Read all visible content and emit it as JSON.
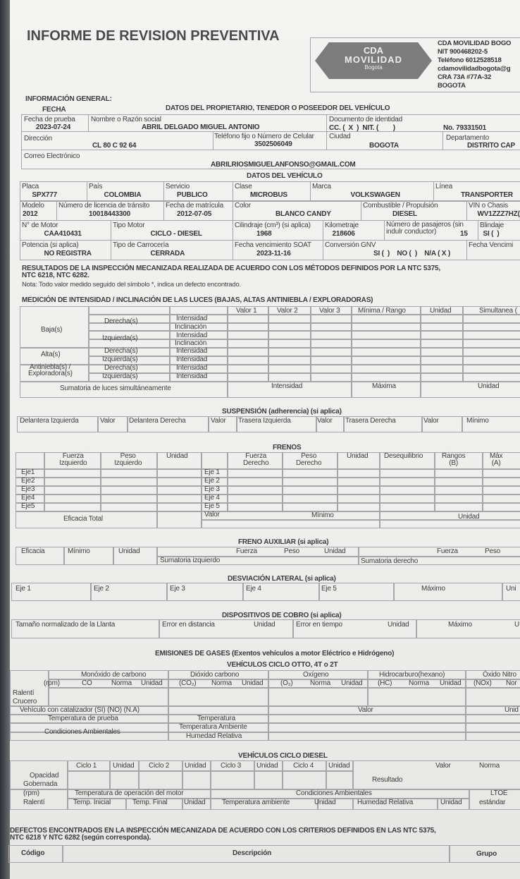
{
  "title": "INFORME DE REVISION PREVENTIVA",
  "company": {
    "logo_text": [
      "CDA",
      "MOVILIDAD",
      "Bogota"
    ],
    "lines": [
      "CDA MOVILIDAD BOGO",
      "NIT 900468202-5",
      "Teléfono 6012528518",
      "cdamovilidadbogota@g",
      "CRA 73A #77A-32",
      "BOGOTA"
    ]
  },
  "general": {
    "heading": "INFORMACIÓN GENERAL:",
    "fecha": "FECHA",
    "owner_heading": "DATOS DEL PROPIETARIO, TENEDOR O POSEEDOR DEL VEHÍCULO",
    "fecha_prueba_label": "Fecha de prueba",
    "fecha_prueba": "2023-07-24",
    "nombre_label": "Nombre o Razón social",
    "nombre": "ABRIL DELGADO MIGUEL ANTONIO",
    "doc_label": "Documento de identidad",
    "doc_type": "CC. (  X  )  NIT. (        )",
    "doc_no": "No.  79331501",
    "direccion_label": "Dirección",
    "direccion": "CL 80 C 92 64",
    "telefono_label": "Teléfono fijo o Número de Celular",
    "telefono": "3502506049",
    "ciudad_label": "Ciudad",
    "ciudad": "BOGOTA",
    "depto_label": "Departamento",
    "depto": "DISTRITO CAP",
    "correo_label": "Correo Electrónico",
    "correo": "ABRILRIOSMIGUELANFONSO@GMAIL.COM"
  },
  "vehicle": {
    "heading": "DATOS DEL VEHÍCULO",
    "fields": [
      {
        "l": "Placa",
        "v": "SPX777"
      },
      {
        "l": "País",
        "v": "COLOMBIA"
      },
      {
        "l": "Servicio",
        "v": "PUBLICO"
      },
      {
        "l": "Clase",
        "v": "MICROBUS"
      },
      {
        "l": "Marca",
        "v": "VOLKSWAGEN"
      },
      {
        "l": "Línea",
        "v": "TRANSPORTER"
      },
      {
        "l": "Modelo",
        "v": "2012"
      },
      {
        "l": "Número de licencia de tránsito",
        "v": "10018443300"
      },
      {
        "l": "Fecha de matrícula",
        "v": "2012-07-05"
      },
      {
        "l": "Color",
        "v": "BLANCO CANDY"
      },
      {
        "l": "Combustible / Propulsión",
        "v": "DIESEL"
      },
      {
        "l": "VIN o Chasis",
        "v": "WV1ZZZ7HZ("
      },
      {
        "l": "N° de Motor",
        "v": "CAA410431"
      },
      {
        "l": "Tipo Motor",
        "v": "CICLO - DIESEL"
      },
      {
        "l": "Cilindraje (cm³) (si aplica)",
        "v": "1968"
      },
      {
        "l": "Kilometraje",
        "v": "218606"
      },
      {
        "l": "Número de pasajeros (sin indulr conductor)",
        "v": "15"
      },
      {
        "l": "Blindaje",
        "v": "SI (  )"
      },
      {
        "l": "Potencia (si aplica)",
        "v": "NO REGISTRA"
      },
      {
        "l": "Tipo de Carrocería",
        "v": "CERRADA"
      },
      {
        "l": "Fecha vencimiento SOAT",
        "v": "2023-11-16"
      },
      {
        "l": "Conversión GNV",
        "v": "SI (  )    NO (  )    N/A ( X )"
      },
      {
        "l": "Fecha Vencimi",
        "v": ""
      }
    ]
  },
  "results": {
    "heading": "RESULTADOS DE LA INSPECCIÓN MECANIZADA REALIZADA DE ACUERDO CON LOS MÉTODOS DEFINIDOS POR LA NTC 5375,",
    "heading2": "NTC 6218, NTC 6282.",
    "note": "Nota: Todo valor medido seguido del símbolo *, indica un defecto encontrado."
  },
  "lights": {
    "heading": "MEDICIÓN DE INTENSIDAD / INCLINACIÓN DE LAS LUCES (BAJAS, ALTAS ANTINIEBLA / EXPLORADORAS)",
    "cols": [
      "Valor 1",
      "Valor 2",
      "Valor 3",
      "Mínima / Rango",
      "Unidad",
      "Simultanea ("
    ],
    "baja": "Baja(s)",
    "alta": "Alta(s)",
    "antiniebla": "Antiniebla(s) /",
    "exploradora": "Exploradora(s)",
    "derecha": "Derecha(s)",
    "izquierda": "Izquierda(s)",
    "intensidad": "Intensidad",
    "inclinacion": "Inclinación",
    "sum": "Sumatoria de luces simultáneamente",
    "sum_cols": [
      "Intensidad",
      "Máxima",
      "Unidad"
    ]
  },
  "suspension": {
    "heading": "SUSPENSIÓN (adherencia) (si aplica)",
    "cols": [
      "Delantera Izquierda",
      "Valor",
      "Delantera Derecha",
      "Valor",
      "Trasera Izquierda",
      "Valor",
      "Trasera Derecha",
      "Valor",
      "Mínimo"
    ]
  },
  "brakes": {
    "heading": "FRENOS",
    "cols": [
      "Fuerza\nIzquierdo",
      "Peso\nIzquierdo",
      "Unidad",
      "Fuerza\nDerecho",
      "Peso\nDerecho",
      "Unidad",
      "Desequilibrio",
      "Rangos\n(B)",
      "Máx\n(A)"
    ],
    "left_axles": [
      "Eje1",
      "Eje2",
      "Eje3",
      "Eje4",
      "Eje5"
    ],
    "right_axles": [
      "Eje 1",
      "Eje 2",
      "Eje 3",
      "Eje 4",
      "Eje 5"
    ],
    "footer": [
      "Eficacia Total",
      "Valor",
      "Mínimo",
      "Unidad"
    ]
  },
  "aux_brake": {
    "heading": "FRENO AUXILIAR (si aplica)",
    "cols": [
      "Eficacia",
      "Mínimo",
      "Unidad",
      "Fuerza",
      "Peso",
      "Unidad",
      "Fuerza",
      "Peso"
    ],
    "sum_left": "Sumatoria izquierdo",
    "sum_right": "Sumatoria derecho"
  },
  "lateral": {
    "heading": "DESVIACIÓN LATERAL (si aplica)",
    "cols": [
      "Eje 1",
      "Eje 2",
      "Eje 3",
      "Eje 4",
      "Eje 5",
      "Máximo",
      "Uni"
    ]
  },
  "cobro": {
    "heading": "DISPOSITIVOS DE COBRO (si aplica)",
    "cols": [
      "Tamaño normalizado de la Llanta",
      "Error en distancia",
      "Unidad",
      "Error en tiempo",
      "Unidad",
      "Máximo",
      "U"
    ]
  },
  "emissions": {
    "heading": "EMISIONES DE GASES (Exentos vehículos a motor Eléctrico e Hidrógeno)",
    "otto": "VEHÍCULOS CICLO OTTO, 4T o 2T",
    "gases": [
      "Monóxido de carbono",
      "Dióxido carbono",
      "Oxígeno",
      "Hidrocarburo(hexano)",
      "Óxido Nitro"
    ],
    "sub": [
      "(rpm)",
      "CO",
      "Norma",
      "Unidad",
      "(CO₂)",
      "Norma",
      "Unidad",
      "(O₂)",
      "Norma",
      "Unidad",
      "(HC)",
      "Norma",
      "Unidad",
      "(NOx)",
      "Nor"
    ],
    "ralenti": "Ralentí",
    "crucero": "Crucero",
    "catalizador": "Vehículo con catalizador (SI) (NO) (N.A)",
    "valor": "Valor",
    "unid": "Unid",
    "temp_prueba": "Temperatura de prueba",
    "temperatura": "Temperatura",
    "cond": "Condiciones Ambientales",
    "temp_amb": "Temperatura Ambiente",
    "humedad": "Humedad Relativa"
  },
  "diesel": {
    "heading": "VEHÍCULOS CICLO DIESEL",
    "cycles": [
      "Ciclo 1",
      "Unidad",
      "Ciclo 2",
      "Unidad",
      "Ciclo 3",
      "Unidad",
      "Ciclo 4",
      "Unidad"
    ],
    "valor": "Valor",
    "norma": "Norma",
    "opacidad": "Opacidad",
    "gobernada": "Gobernada",
    "resultado": "Resultado",
    "rpm": "(rpm)",
    "ralenti": "Ralentí",
    "temp_op": "Temperatura de operación del motor",
    "cond": "Condiciones Ambientales",
    "ltoe": "LTOE",
    "estandar": "estándar",
    "sub": [
      "Temp. Inicial",
      "Temp. Final",
      "Unidad",
      "Temperatura ambiente",
      "Unidad",
      "Humedad Relativa",
      "Unidad"
    ]
  },
  "defects": {
    "heading": "DEFECTOS ENCONTRADOS EN LA INSPECCIÓN MECANIZADA DE ACUERDO CON LOS CRITERIOS DEFINIDOS EN LAS NTC 5375,",
    "heading2": "NTC 6218 Y NTC 6282 (según corresponda).",
    "cols": [
      "Código",
      "Descripción",
      "Grupo"
    ]
  }
}
